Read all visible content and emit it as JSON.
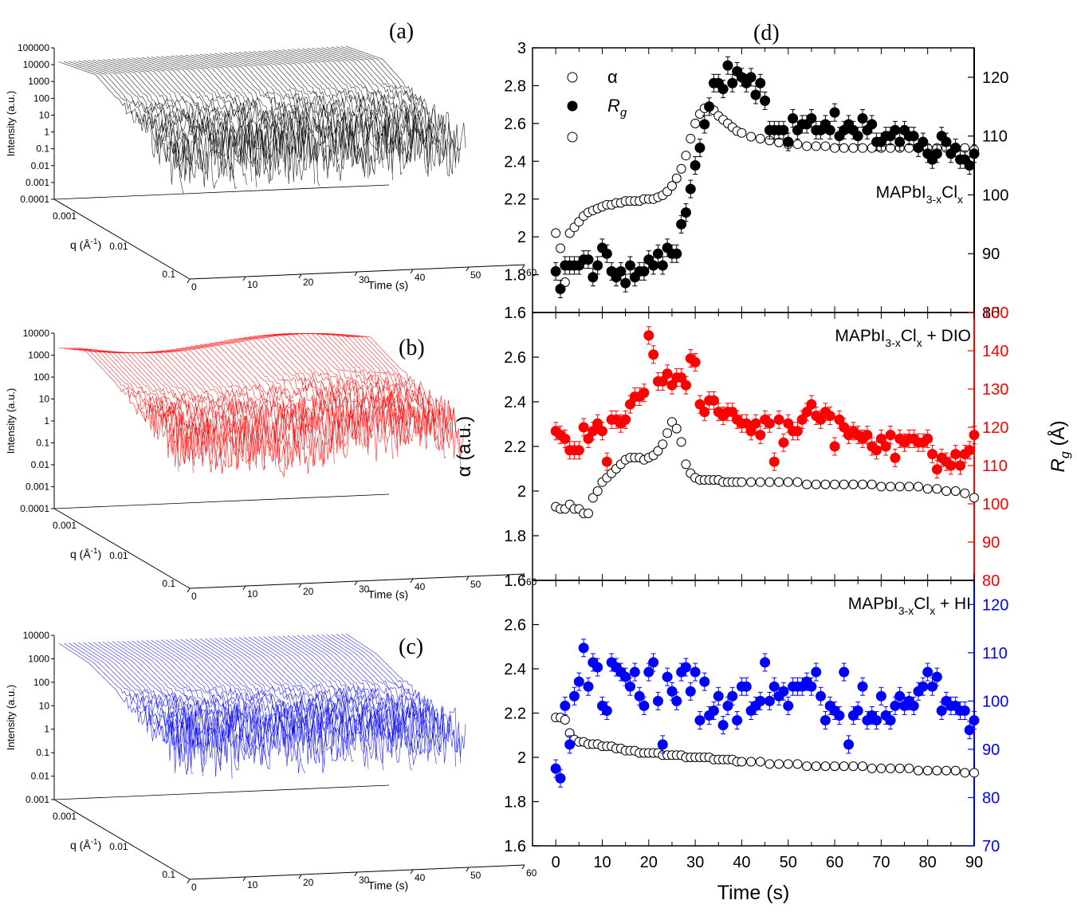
{
  "panel_labels": {
    "a": "(a)",
    "b": "(b)",
    "c": "(c)",
    "d": "(d)"
  },
  "colors": {
    "a": "#000000",
    "b": "#ff0000",
    "c": "#0000ff"
  },
  "panels_3d": [
    {
      "id": "a",
      "ylabel": "Intensity (a.u.)",
      "qlabel": "q (Å",
      "qlabel_sup": "-1",
      "qlabel_end": ")",
      "tlabel": "Time (s)",
      "yticks": [
        "100000",
        "10000",
        "1000",
        "100",
        "10",
        "1",
        "0.1",
        "0.01",
        "0.001",
        "0.0001"
      ],
      "qticks": [
        "0.001",
        "0.01",
        "0.1"
      ],
      "tticks": [
        "0",
        "10",
        "20",
        "30",
        "40",
        "50",
        "60"
      ]
    },
    {
      "id": "b",
      "ylabel": "Intensity (a.u.)",
      "qlabel": "q (Å",
      "qlabel_sup": "-1",
      "qlabel_end": ")",
      "tlabel": "Time (s)",
      "yticks": [
        "10000",
        "1000",
        "100",
        "10",
        "1",
        "0.1",
        "0.01",
        "0.001",
        "0.0001"
      ],
      "qticks": [
        "0.001",
        "0.01",
        "0.1"
      ],
      "tticks": [
        "0",
        "10",
        "20",
        "30",
        "40",
        "50",
        "60"
      ]
    },
    {
      "id": "c",
      "ylabel": "Intensity (a.u.)",
      "qlabel": "q (Å",
      "qlabel_sup": "-1",
      "qlabel_end": ")",
      "tlabel": "Time (s)",
      "yticks": [
        "10000",
        "1000",
        "100",
        "10",
        "1",
        "0.1",
        "0.01",
        "0.001"
      ],
      "qticks": [
        "0.001",
        "0.01",
        "0.1"
      ],
      "tticks": [
        "0",
        "10",
        "20",
        "30",
        "40",
        "50",
        "60"
      ]
    }
  ],
  "chart_data": {
    "type": "scatter",
    "xlabel": "Time (s)",
    "ylabel_left": "α (a.u.)",
    "ylabel_right": "R",
    "ylabel_right_sub": "g",
    "ylabel_right_unit": " (Å)",
    "xlim": [
      -5,
      90
    ],
    "xticks": [
      "0",
      "10",
      "20",
      "30",
      "40",
      "50",
      "60",
      "70",
      "80",
      "90"
    ],
    "legend": {
      "alpha": "α",
      "rg": "R",
      "rg_sub": "g"
    },
    "subplots": [
      {
        "name": "MAPbI3-xClx",
        "label_main": "MAPbI",
        "label_sub1": "3-x",
        "label_mid": "Cl",
        "label_sub2": "x",
        "label_tail": "",
        "alpha_lim": [
          1.6,
          3.0
        ],
        "rg_lim": [
          80,
          125
        ],
        "alpha_ticks": [
          "3",
          "2.8",
          "2.6",
          "2.4",
          "2.2",
          "2",
          "1.8",
          "1.6"
        ],
        "rg_ticks": [
          "120",
          "110",
          "100",
          "90",
          "80"
        ],
        "rg_color": "#000000",
        "alpha_x": [
          0,
          1,
          2,
          3,
          4,
          5,
          6,
          7,
          8,
          9,
          10,
          11,
          12,
          13,
          14,
          15,
          16,
          17,
          18,
          19,
          20,
          21,
          22,
          23,
          24,
          25,
          26,
          27,
          28,
          29,
          30,
          31,
          32,
          33,
          34,
          35,
          36,
          37,
          38,
          39,
          40,
          42,
          44,
          46,
          48,
          50,
          52,
          54,
          56,
          58,
          60,
          62,
          64,
          66,
          68,
          70,
          72,
          74,
          76,
          78,
          80,
          82,
          84,
          86,
          88,
          90
        ],
        "alpha_y": [
          2.02,
          1.94,
          1.76,
          2.02,
          2.05,
          2.08,
          2.11,
          2.13,
          2.14,
          2.15,
          2.16,
          2.17,
          2.17,
          2.18,
          2.18,
          2.19,
          2.19,
          2.19,
          2.19,
          2.2,
          2.2,
          2.2,
          2.21,
          2.22,
          2.24,
          2.27,
          2.31,
          2.36,
          2.43,
          2.52,
          2.6,
          2.65,
          2.68,
          2.69,
          2.67,
          2.64,
          2.62,
          2.6,
          2.58,
          2.56,
          2.55,
          2.53,
          2.52,
          2.51,
          2.5,
          2.49,
          2.49,
          2.48,
          2.48,
          2.48,
          2.47,
          2.47,
          2.47,
          2.47,
          2.47,
          2.47,
          2.47,
          2.47,
          2.47,
          2.47,
          2.47,
          2.47,
          2.47,
          2.47,
          2.47,
          2.46
        ],
        "rg_x": [
          0,
          1,
          2,
          3,
          4,
          5,
          6,
          7,
          8,
          9,
          10,
          11,
          12,
          13,
          14,
          15,
          16,
          17,
          18,
          19,
          20,
          21,
          22,
          23,
          24,
          25,
          26,
          27,
          28,
          29,
          30,
          31,
          32,
          33,
          34,
          35,
          36,
          37,
          38,
          39,
          40,
          41,
          42,
          43,
          44,
          45,
          46,
          47,
          48,
          49,
          50,
          51,
          52,
          53,
          54,
          55,
          56,
          57,
          58,
          59,
          60,
          61,
          62,
          63,
          64,
          65,
          66,
          67,
          68,
          69,
          70,
          71,
          72,
          73,
          74,
          75,
          76,
          77,
          78,
          79,
          80,
          81,
          82,
          83,
          84,
          85,
          86,
          87,
          88,
          89,
          90
        ],
        "rg_y": [
          87,
          84,
          88,
          88,
          88,
          88,
          89,
          89,
          86,
          88,
          91,
          90,
          87,
          86,
          87,
          85,
          88,
          86,
          87,
          87,
          89,
          88,
          90,
          88,
          91,
          90,
          90,
          95,
          97,
          101,
          105,
          108,
          112,
          115,
          119,
          119,
          118,
          122,
          119,
          121,
          120,
          119,
          120,
          117,
          119,
          116,
          111,
          111,
          111,
          111,
          109,
          113,
          111,
          112,
          112,
          113,
          111,
          111,
          112,
          111,
          114,
          110,
          111,
          112,
          111,
          110,
          113,
          111,
          112,
          109,
          109,
          110,
          110,
          111,
          109,
          111,
          110,
          110,
          108,
          109,
          107,
          106,
          107,
          110,
          109,
          107,
          108,
          106,
          106,
          105,
          107
        ]
      },
      {
        "name": "MAPbI3-xClx + DIO",
        "label_main": "MAPbI",
        "label_sub1": "3-x",
        "label_mid": "Cl",
        "label_sub2": "x",
        "label_tail": " + DIO",
        "alpha_lim": [
          1.6,
          2.8
        ],
        "rg_lim": [
          80,
          150
        ],
        "alpha_ticks": [
          "2.6",
          "2.4",
          "2.2",
          "2",
          "1.8",
          "1.6"
        ],
        "rg_ticks": [
          "150",
          "140",
          "130",
          "120",
          "110",
          "100",
          "90",
          "80"
        ],
        "rg_color": "#ff0000",
        "alpha_x": [
          0,
          1,
          2,
          3,
          4,
          5,
          6,
          7,
          8,
          9,
          10,
          11,
          12,
          13,
          14,
          15,
          16,
          17,
          18,
          19,
          20,
          21,
          22,
          23,
          24,
          25,
          26,
          27,
          28,
          29,
          30,
          31,
          32,
          33,
          34,
          35,
          36,
          37,
          38,
          39,
          40,
          42,
          44,
          46,
          48,
          50,
          52,
          54,
          56,
          58,
          60,
          62,
          64,
          66,
          68,
          70,
          72,
          74,
          76,
          78,
          80,
          82,
          84,
          86,
          88,
          90
        ],
        "alpha_y": [
          1.93,
          1.92,
          1.92,
          1.94,
          1.92,
          1.92,
          1.9,
          1.9,
          1.97,
          2.0,
          2.04,
          2.06,
          2.08,
          2.1,
          2.12,
          2.14,
          2.15,
          2.15,
          2.15,
          2.14,
          2.15,
          2.16,
          2.18,
          2.21,
          2.26,
          2.31,
          2.28,
          2.22,
          2.12,
          2.08,
          2.06,
          2.05,
          2.05,
          2.05,
          2.05,
          2.05,
          2.04,
          2.04,
          2.04,
          2.04,
          2.04,
          2.04,
          2.04,
          2.04,
          2.04,
          2.04,
          2.04,
          2.03,
          2.03,
          2.03,
          2.03,
          2.03,
          2.03,
          2.03,
          2.03,
          2.02,
          2.02,
          2.02,
          2.02,
          2.02,
          2.01,
          2.01,
          2.0,
          2.0,
          1.99,
          1.97
        ],
        "rg_x": [
          0,
          1,
          2,
          3,
          4,
          5,
          6,
          7,
          8,
          9,
          10,
          11,
          12,
          13,
          14,
          15,
          16,
          17,
          18,
          19,
          20,
          21,
          22,
          23,
          24,
          25,
          26,
          27,
          28,
          29,
          30,
          31,
          32,
          33,
          34,
          35,
          36,
          37,
          38,
          39,
          40,
          41,
          42,
          43,
          44,
          45,
          46,
          47,
          48,
          49,
          50,
          51,
          52,
          53,
          54,
          55,
          56,
          57,
          58,
          59,
          60,
          61,
          62,
          63,
          64,
          65,
          66,
          67,
          68,
          69,
          70,
          71,
          72,
          73,
          74,
          75,
          76,
          77,
          78,
          79,
          80,
          81,
          82,
          83,
          84,
          85,
          86,
          87,
          88,
          89,
          90
        ],
        "rg_y": [
          119,
          118,
          117,
          114,
          114,
          114,
          120,
          117,
          119,
          121,
          119,
          111,
          122,
          122,
          121,
          122,
          126,
          128,
          128,
          129,
          144,
          139,
          132,
          132,
          134,
          131,
          133,
          133,
          131,
          138,
          137,
          126,
          124,
          127,
          127,
          124,
          123,
          124,
          124,
          122,
          121,
          121,
          119,
          121,
          118,
          122,
          121,
          111,
          122,
          116,
          121,
          119,
          119,
          122,
          124,
          126,
          123,
          122,
          124,
          123,
          115,
          122,
          120,
          118,
          119,
          118,
          117,
          118,
          115,
          114,
          117,
          115,
          118,
          112,
          117,
          116,
          117,
          117,
          116,
          116,
          117,
          113,
          109,
          112,
          111,
          110,
          113,
          110,
          113,
          114,
          118
        ]
      },
      {
        "name": "MAPbI3-xClx + HI",
        "label_main": "MAPbI",
        "label_sub1": "3-x",
        "label_mid": "Cl",
        "label_sub2": "x",
        "label_tail": " + HI",
        "alpha_lim": [
          1.6,
          2.8
        ],
        "rg_lim": [
          70,
          125
        ],
        "alpha_ticks": [
          "2.6",
          "2.4",
          "2.2",
          "2",
          "1.8",
          "1.6"
        ],
        "rg_ticks": [
          "120",
          "110",
          "100",
          "90",
          "80",
          "70"
        ],
        "rg_color": "#0000ff",
        "alpha_x": [
          0,
          1,
          2,
          3,
          4,
          5,
          6,
          7,
          8,
          9,
          10,
          11,
          12,
          13,
          14,
          15,
          16,
          17,
          18,
          19,
          20,
          21,
          22,
          23,
          24,
          25,
          26,
          27,
          28,
          29,
          30,
          31,
          32,
          33,
          34,
          35,
          36,
          37,
          38,
          39,
          40,
          42,
          44,
          46,
          48,
          50,
          52,
          54,
          56,
          58,
          60,
          62,
          64,
          66,
          68,
          70,
          72,
          74,
          76,
          78,
          80,
          82,
          84,
          86,
          88,
          90
        ],
        "alpha_y": [
          2.18,
          2.18,
          2.17,
          2.11,
          2.08,
          2.07,
          2.07,
          2.06,
          2.06,
          2.06,
          2.05,
          2.05,
          2.05,
          2.04,
          2.04,
          2.03,
          2.03,
          2.03,
          2.02,
          2.02,
          2.02,
          2.02,
          2.02,
          2.01,
          2.01,
          2.01,
          2.01,
          2.01,
          2.0,
          2.0,
          2.0,
          2.0,
          2.0,
          2.0,
          1.99,
          1.99,
          1.99,
          1.99,
          1.99,
          1.98,
          1.98,
          1.98,
          1.98,
          1.97,
          1.97,
          1.97,
          1.97,
          1.96,
          1.96,
          1.96,
          1.96,
          1.96,
          1.96,
          1.96,
          1.95,
          1.95,
          1.95,
          1.95,
          1.95,
          1.94,
          1.94,
          1.94,
          1.94,
          1.94,
          1.93,
          1.93
        ],
        "rg_x": [
          0,
          1,
          2,
          3,
          4,
          5,
          6,
          7,
          8,
          9,
          10,
          11,
          12,
          13,
          14,
          15,
          16,
          17,
          18,
          19,
          20,
          21,
          22,
          23,
          24,
          25,
          26,
          27,
          28,
          29,
          30,
          31,
          32,
          33,
          34,
          35,
          36,
          37,
          38,
          39,
          40,
          41,
          42,
          43,
          44,
          45,
          46,
          47,
          48,
          49,
          50,
          51,
          52,
          53,
          54,
          55,
          56,
          57,
          58,
          59,
          60,
          61,
          62,
          63,
          64,
          65,
          66,
          67,
          68,
          69,
          70,
          71,
          72,
          73,
          74,
          75,
          76,
          77,
          78,
          79,
          80,
          81,
          82,
          83,
          84,
          85,
          86,
          87,
          88,
          89,
          90
        ],
        "rg_y": [
          86,
          84,
          99,
          91,
          101,
          104,
          111,
          103,
          108,
          107,
          99,
          98,
          108,
          107,
          106,
          105,
          103,
          106,
          101,
          99,
          106,
          108,
          100,
          91,
          105,
          102,
          100,
          106,
          107,
          102,
          106,
          96,
          104,
          97,
          98,
          101,
          95,
          99,
          101,
          96,
          103,
          103,
          98,
          99,
          100,
          108,
          100,
          103,
          101,
          102,
          99,
          103,
          103,
          103,
          104,
          103,
          106,
          101,
          96,
          99,
          98,
          97,
          106,
          91,
          97,
          98,
          103,
          96,
          97,
          96,
          101,
          97,
          96,
          99,
          101,
          99,
          100,
          99,
          102,
          103,
          106,
          103,
          105,
          98,
          100,
          99,
          99,
          98,
          98,
          94,
          96
        ]
      }
    ]
  }
}
